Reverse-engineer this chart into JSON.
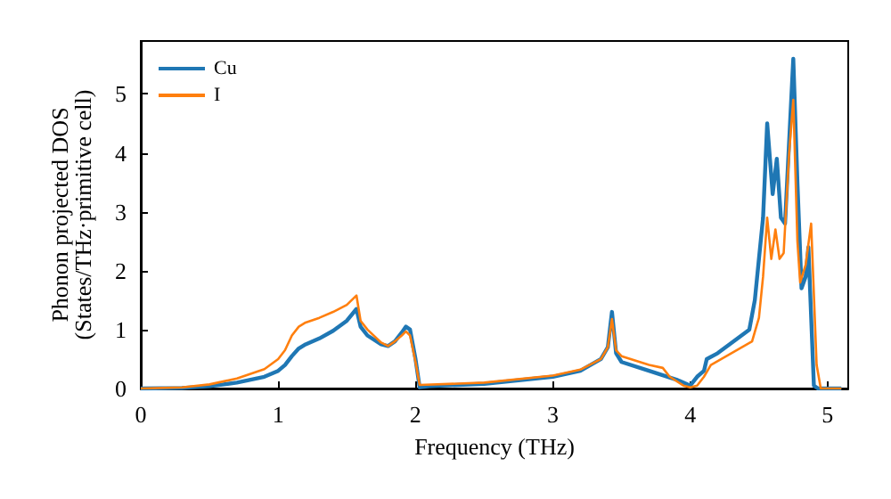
{
  "chart_data": {
    "type": "line",
    "xlabel": "Frequency (THz)",
    "ylabel": "Phonon projected DOS\n(States/THz·primitive cell)",
    "xlim": [
      0,
      5.15
    ],
    "ylim": [
      0,
      5.9
    ],
    "xticks": [
      0,
      1,
      2,
      3,
      4,
      5
    ],
    "yticks": [
      0,
      1,
      2,
      3,
      4,
      5
    ],
    "grid": false,
    "legend": "top left",
    "marker": "none",
    "line_style": "solid",
    "series": [
      {
        "name": "Cu",
        "color": "#1f77b4",
        "x": [
          0,
          0.3,
          0.5,
          0.7,
          0.9,
          1.0,
          1.05,
          1.1,
          1.15,
          1.2,
          1.3,
          1.4,
          1.5,
          1.57,
          1.6,
          1.65,
          1.75,
          1.8,
          1.85,
          1.9,
          1.93,
          1.96,
          2.0,
          2.03,
          2.1,
          2.5,
          3.0,
          3.2,
          3.35,
          3.4,
          3.43,
          3.46,
          3.5,
          3.7,
          3.9,
          4.0,
          4.05,
          4.1,
          4.12,
          4.2,
          4.43,
          4.47,
          4.5,
          4.53,
          4.56,
          4.6,
          4.63,
          4.66,
          4.69,
          4.75,
          4.78,
          4.81,
          4.84,
          4.86,
          4.9,
          4.93,
          5.1
        ],
        "values": [
          0,
          0.01,
          0.04,
          0.1,
          0.2,
          0.3,
          0.4,
          0.55,
          0.68,
          0.75,
          0.85,
          0.98,
          1.15,
          1.35,
          1.05,
          0.9,
          0.75,
          0.72,
          0.8,
          0.95,
          1.05,
          1.0,
          0.5,
          0.02,
          0.04,
          0.08,
          0.2,
          0.3,
          0.5,
          0.7,
          1.3,
          0.6,
          0.45,
          0.3,
          0.15,
          0.05,
          0.2,
          0.3,
          0.5,
          0.6,
          1.0,
          1.5,
          2.2,
          2.9,
          4.5,
          3.3,
          3.9,
          2.9,
          2.8,
          5.6,
          3.5,
          1.7,
          1.9,
          2.4,
          0.05,
          0,
          0
        ]
      },
      {
        "name": "I",
        "color": "#ff7f0e",
        "x": [
          0,
          0.3,
          0.5,
          0.7,
          0.9,
          1.0,
          1.05,
          1.1,
          1.15,
          1.2,
          1.3,
          1.4,
          1.5,
          1.57,
          1.6,
          1.65,
          1.75,
          1.8,
          1.85,
          1.9,
          1.93,
          1.96,
          2.0,
          2.03,
          2.5,
          3.0,
          3.2,
          3.35,
          3.4,
          3.43,
          3.46,
          3.5,
          3.7,
          3.8,
          3.85,
          3.95,
          4.0,
          4.05,
          4.1,
          4.15,
          4.3,
          4.45,
          4.5,
          4.53,
          4.56,
          4.59,
          4.62,
          4.65,
          4.68,
          4.72,
          4.75,
          4.78,
          4.8,
          4.84,
          4.88,
          4.92,
          4.95,
          5.1
        ],
        "values": [
          0,
          0.02,
          0.07,
          0.17,
          0.33,
          0.5,
          0.65,
          0.9,
          1.05,
          1.12,
          1.2,
          1.3,
          1.42,
          1.58,
          1.15,
          1.0,
          0.78,
          0.72,
          0.8,
          0.9,
          0.97,
          0.9,
          0.45,
          0.06,
          0.1,
          0.22,
          0.32,
          0.5,
          0.7,
          1.18,
          0.65,
          0.55,
          0.4,
          0.35,
          0.2,
          0.05,
          0.02,
          0.05,
          0.2,
          0.4,
          0.6,
          0.8,
          1.2,
          1.9,
          2.9,
          2.2,
          2.7,
          2.2,
          2.3,
          4.0,
          4.9,
          2.5,
          1.8,
          2.1,
          2.8,
          0.4,
          0,
          0
        ]
      }
    ]
  }
}
